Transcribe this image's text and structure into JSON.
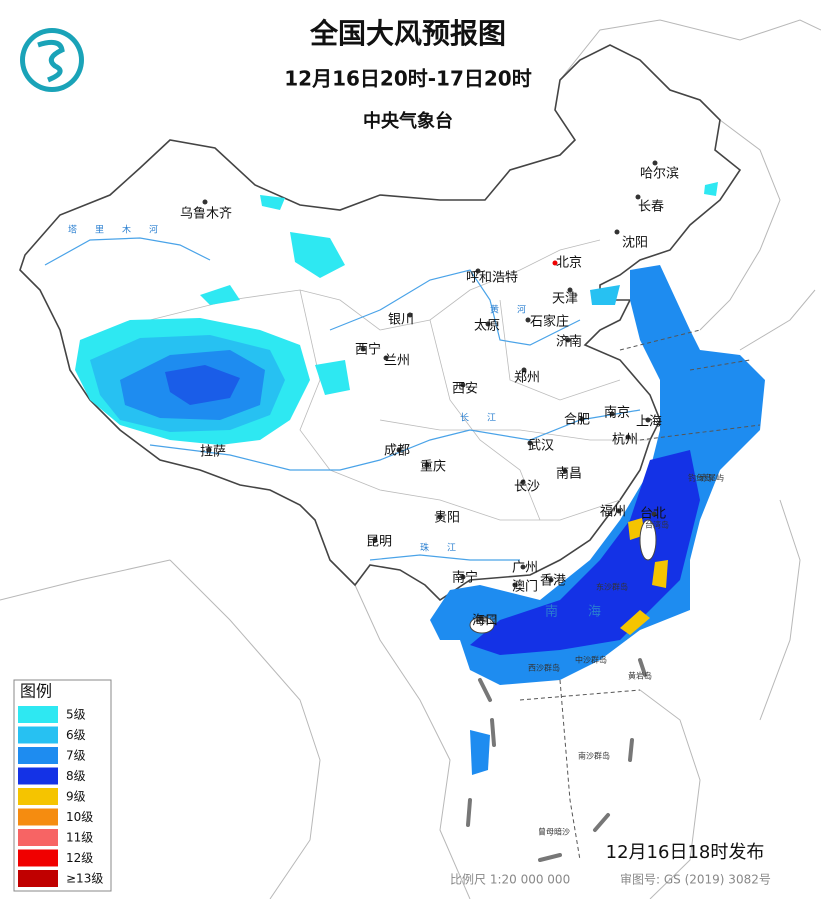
{
  "header": {
    "title": "全国大风预报图",
    "period": "12月16日20时-17日20时",
    "issuer": "中央气象台"
  },
  "cities": [
    "乌鲁木齐",
    "哈尔滨",
    "长春",
    "沈阳",
    "北京",
    "天津",
    "呼和浩特",
    "石家庄",
    "太原",
    "银川",
    "济南",
    "西宁",
    "兰州",
    "郑州",
    "西安",
    "南京",
    "上海",
    "合肥",
    "杭州",
    "武汉",
    "成都",
    "重庆",
    "拉萨",
    "南昌",
    "长沙",
    "福州",
    "台北",
    "贵阳",
    "昆明",
    "南宁",
    "广州",
    "澳门",
    "香港",
    "海口"
  ],
  "rivers": [
    "塔里木河",
    "黄河",
    "长江",
    "珠江"
  ],
  "seas": [
    "南海"
  ],
  "islands": [
    "台湾岛",
    "海南岛",
    "东沙群岛",
    "西沙群岛",
    "中沙群岛",
    "黄岩岛",
    "南沙群岛",
    "曾母暗沙",
    "钓鱼岛",
    "赤尾屿"
  ],
  "legend": {
    "title": "图例",
    "items": [
      {
        "label": "5级",
        "color": "#2ee8f2"
      },
      {
        "label": "6级",
        "color": "#27c1f2"
      },
      {
        "label": "7级",
        "color": "#1e8cf0"
      },
      {
        "label": "8级",
        "color": "#1432e6"
      },
      {
        "label": "9级",
        "color": "#f5c400"
      },
      {
        "label": "10级",
        "color": "#f58c10"
      },
      {
        "label": "11级",
        "color": "#f76464"
      },
      {
        "label": "12级",
        "color": "#f00000"
      },
      {
        "label": "≥13级",
        "color": "#c00000"
      }
    ]
  },
  "footer": {
    "issued": "12月16日18时发布",
    "scale": "比例尺 1:20 000 000",
    "approval": "审图号: GS (2019) 3082号"
  }
}
